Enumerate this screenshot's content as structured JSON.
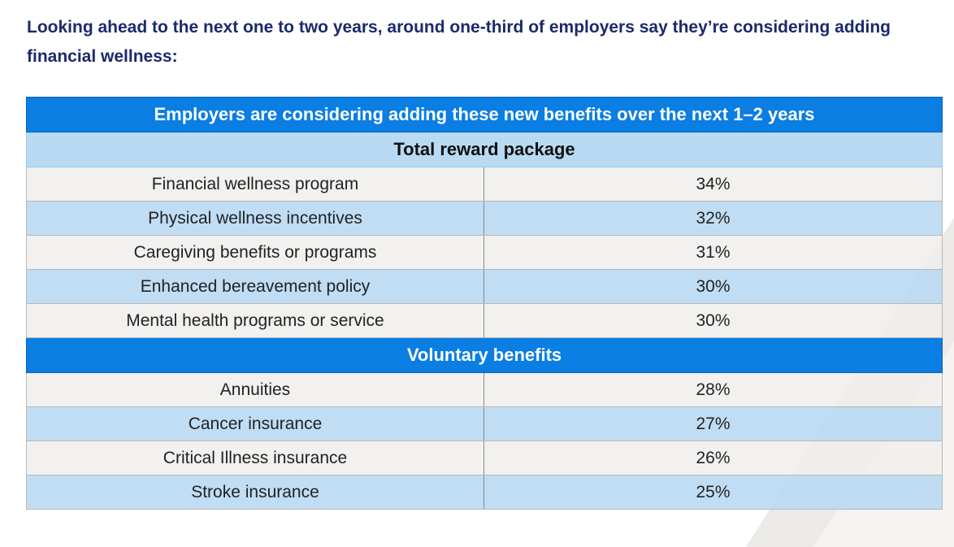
{
  "intro": {
    "text": "Looking ahead to the next one to two years, around one-third of employers say they’re considering adding financial wellness:"
  },
  "table": {
    "title": "Employers are considering adding these new benefits over the next 1–2 years",
    "sections": [
      {
        "heading": "Total reward package",
        "rows": [
          {
            "label": "Financial wellness program",
            "value": "34%"
          },
          {
            "label": "Physical wellness incentives",
            "value": "32%"
          },
          {
            "label": "Caregiving benefits or programs",
            "value": "31%"
          },
          {
            "label": "Enhanced bereavement policy",
            "value": "30%"
          },
          {
            "label": "Mental health programs or service",
            "value": "30%"
          }
        ]
      },
      {
        "heading": "Voluntary benefits",
        "rows": [
          {
            "label": "Annuities",
            "value": "28%"
          },
          {
            "label": "Cancer insurance",
            "value": "27%"
          },
          {
            "label": "Critical Illness insurance",
            "value": "26%"
          },
          {
            "label": "Stroke insurance",
            "value": "25%"
          }
        ]
      }
    ]
  },
  "colors": {
    "heading_text": "#1b2a6b",
    "accent_blue": "#0a7ee2",
    "light_blue": "#b9daf3",
    "row_grey": "#f0efec"
  }
}
